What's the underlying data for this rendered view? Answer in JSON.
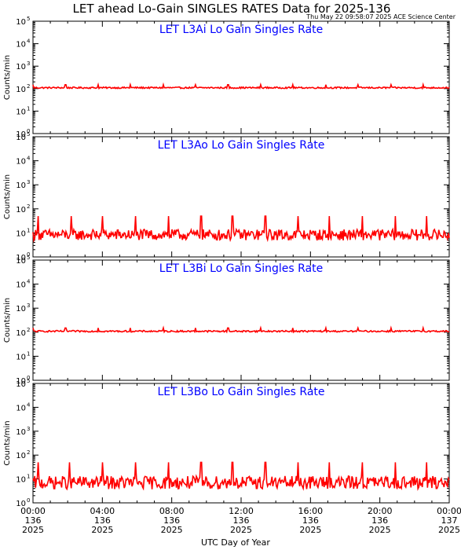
{
  "header": {
    "title": "LET ahead Lo-Gain SINGLES RATES Data for 2025-136",
    "stamp": "Thu May 22 09:58:07 2025 ACE Science Center"
  },
  "colors": {
    "series": "#ff0000",
    "panel_title": "#0000ff",
    "axes": "#000000",
    "background": "#ffffff"
  },
  "chart_data": [
    {
      "type": "line",
      "title": "LET L3Ai Lo Gain Singles Rate",
      "ylabel": "Counts/min",
      "yscale": "log",
      "ylim": [
        1,
        100000
      ],
      "xlim": [
        0,
        24
      ],
      "xunit": "hours",
      "baseline": 110,
      "noise_low": 95,
      "noise_high": 125,
      "spike_value": 150,
      "spike_times_h": [
        0,
        1.88,
        3.75,
        5.63,
        7.5,
        9.38,
        11.25,
        13.13,
        15.0,
        16.88,
        18.75,
        20.63,
        22.5
      ],
      "series": [
        {
          "values": []
        }
      ]
    },
    {
      "type": "line",
      "title": "LET L3Ao Lo Gain Singles Rate",
      "ylabel": "Counts/min",
      "yscale": "log",
      "ylim": [
        1,
        100000
      ],
      "xlim": [
        0,
        24
      ],
      "xunit": "hours",
      "baseline": 9,
      "noise_low": 3,
      "noise_high": 20,
      "spike_value": 50,
      "spike_times_h": [
        0.3,
        2.2,
        4.0,
        5.9,
        7.8,
        9.7,
        11.5,
        13.4,
        15.3,
        17.1,
        19.0,
        20.9,
        22.7
      ],
      "series": [
        {
          "values": []
        }
      ]
    },
    {
      "type": "line",
      "title": "LET L3Bi Lo Gain Singles Rate",
      "ylabel": "Counts/min",
      "yscale": "log",
      "ylim": [
        1,
        100000
      ],
      "xlim": [
        0,
        24
      ],
      "xunit": "hours",
      "baseline": 110,
      "noise_low": 95,
      "noise_high": 125,
      "spike_value": 150,
      "spike_times_h": [
        0,
        1.88,
        3.75,
        5.63,
        7.5,
        9.38,
        11.25,
        13.13,
        15.0,
        16.88,
        18.75,
        20.63,
        22.5
      ],
      "series": [
        {
          "values": []
        }
      ]
    },
    {
      "type": "line",
      "title": "LET L3Bo Lo Gain Singles Rate",
      "ylabel": "Counts/min",
      "yscale": "log",
      "ylim": [
        1,
        100000
      ],
      "xlim": [
        0,
        24
      ],
      "xunit": "hours",
      "baseline": 8,
      "noise_low": 2,
      "noise_high": 20,
      "spike_value": 50,
      "spike_times_h": [
        0.3,
        2.1,
        4.0,
        5.9,
        7.8,
        9.7,
        11.5,
        13.4,
        15.3,
        17.1,
        19.0,
        20.9,
        22.7
      ],
      "series": [
        {
          "values": []
        }
      ]
    }
  ],
  "yaxis": {
    "major_mantissa": "10",
    "major_exponents": [
      "0",
      "1",
      "2",
      "3",
      "4",
      "5"
    ]
  },
  "xaxis": {
    "label": "UTC Day of Year",
    "ticks": [
      {
        "time": "00:00",
        "doy": "136",
        "year": "2025",
        "hour": 0
      },
      {
        "time": "04:00",
        "doy": "136",
        "year": "2025",
        "hour": 4
      },
      {
        "time": "08:00",
        "doy": "136",
        "year": "2025",
        "hour": 8
      },
      {
        "time": "12:00",
        "doy": "136",
        "year": "2025",
        "hour": 12
      },
      {
        "time": "16:00",
        "doy": "136",
        "year": "2025",
        "hour": 16
      },
      {
        "time": "20:00",
        "doy": "136",
        "year": "2025",
        "hour": 20
      },
      {
        "time": "00:00",
        "doy": "137",
        "year": "2025",
        "hour": 24
      }
    ]
  }
}
